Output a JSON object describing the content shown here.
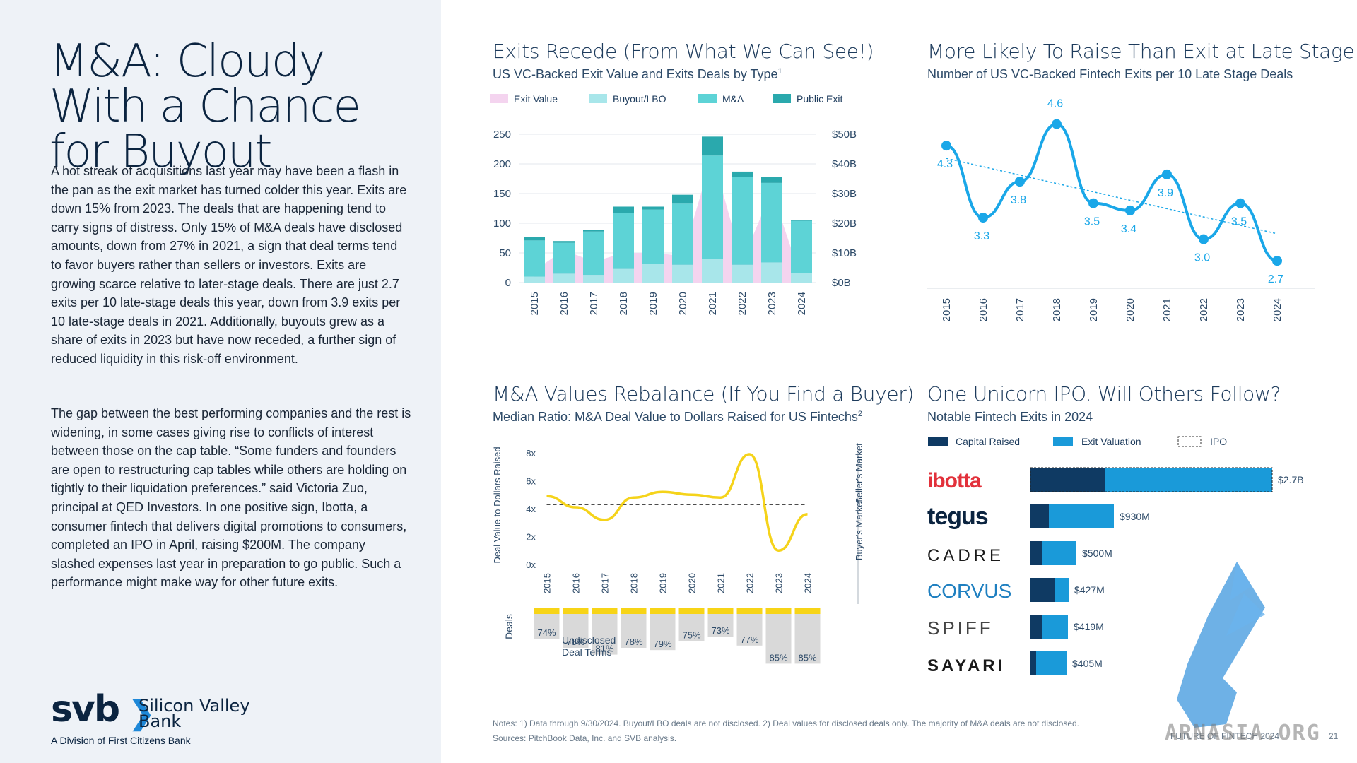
{
  "left": {
    "title": "M&A: Cloudy With a Chance for Buyout",
    "p1": "A hot streak of acquisitions last year may have been a flash in the pan as the exit market has turned colder this year. Exits are down 15% from 2023. The deals that are happening tend to carry signs of distress. Only 15% of M&A deals have disclosed amounts, down from 27% in 2021, a sign that deal terms tend to favor buyers rather than sellers or investors. Exits are growing scarce relative to later-stage deals. There are just 2.7 exits per 10 late-stage deals this year, down from 3.9 exits per 10 late-stage deals in 2021. Additionally, buyouts grew as a share of exits in 2023 but have now receded, a further sign of reduced liquidity in this risk-off environment.",
    "p2": "The gap between the best performing companies and the rest is widening, in some cases giving rise to conflicts of interest between those on the cap table. “Some funders and founders are open to restructuring cap tables while others are holding on tightly to their liquidation preferences.” said Victoria Zuo, principal at QED Investors.  In one positive sign, Ibotta, a consumer fintech that delivers digital promotions to consumers, completed an IPO in April, raising $200M. The company slashed expenses last year in preparation to go public. Such a performance might make way for other future exits.",
    "logo_mark": "svb",
    "logo_chevron": "❯",
    "logo_name": "Silicon Valley Bank",
    "logo_sub": "A Division of First Citizens Bank"
  },
  "colors": {
    "exit_value": "#f4d4ef",
    "buyout": "#a8e6ea",
    "ma": "#5dd3d6",
    "public": "#2aa9ad",
    "line_blue": "#1aa7e8",
    "yellow": "#f7d417",
    "navy": "#0f3a63",
    "bar_blue": "#1a9ad9"
  },
  "chart_data": [
    {
      "type": "bar",
      "title": "Exits Recede (From What We Can See!)",
      "subtitle": "US VC-Backed Exit Value and Exits Deals by Type",
      "subtitle_sup": "1",
      "categories": [
        "2015",
        "2016",
        "2017",
        "2018",
        "2019",
        "2020",
        "2021",
        "2022",
        "2023",
        "2024"
      ],
      "stacked": true,
      "series": [
        {
          "name": "Buyout/LBO",
          "color_key": "buyout",
          "values": [
            10,
            15,
            13,
            23,
            31,
            30,
            40,
            30,
            34,
            16
          ]
        },
        {
          "name": "M&A",
          "color_key": "ma",
          "values": [
            61,
            52,
            73,
            94,
            92,
            103,
            174,
            148,
            134,
            88
          ]
        },
        {
          "name": "Public Exit",
          "color_key": "public",
          "values": [
            6,
            3,
            3,
            11,
            5,
            15,
            32,
            9,
            10,
            1
          ]
        }
      ],
      "area_series": {
        "name": "Exit Value",
        "color_key": "exit_value",
        "values": [
          4,
          11,
          7,
          10,
          10,
          9,
          43,
          7,
          31,
          1
        ]
      },
      "ylim_left": [
        0,
        250
      ],
      "left_ticks": [
        "0",
        "50",
        "100",
        "150",
        "200",
        "250"
      ],
      "ylim_right": [
        0,
        50
      ],
      "right_ticks": [
        "$0B",
        "$10B",
        "$20B",
        "$30B",
        "$40B",
        "$50B"
      ],
      "legend": [
        "Exit Value",
        "Buyout/LBO",
        "M&A",
        "Public Exit"
      ]
    },
    {
      "type": "line",
      "title": "More Likely To Raise Than Exit at Late Stage",
      "subtitle": "Number of US VC-Backed Fintech Exits per 10 Late Stage Deals",
      "categories": [
        "2015",
        "2016",
        "2017",
        "2018",
        "2019",
        "2020",
        "2021",
        "2022",
        "2023",
        "2024"
      ],
      "values": [
        4.3,
        3.3,
        3.8,
        4.6,
        3.5,
        3.4,
        3.9,
        3.0,
        3.5,
        2.7
      ],
      "labels": [
        "4.3",
        "3.3",
        "3.8",
        "4.6",
        "3.5",
        "3.4",
        "3.9",
        "3.0",
        "3.5",
        "2.7"
      ],
      "trendline": true
    },
    {
      "type": "line",
      "title": "M&A Values Rebalance (If You Find a Buyer)",
      "subtitle": "Median Ratio: M&A Deal Value to Dollars Raised for US Fintechs",
      "subtitle_sup": "2",
      "categories": [
        "2015",
        "2016",
        "2017",
        "2018",
        "2019",
        "2020",
        "2021",
        "2022",
        "2023",
        "2024"
      ],
      "values": [
        4.9,
        4.1,
        3.2,
        4.8,
        5.2,
        5.0,
        4.8,
        7.9,
        1.0,
        3.6
      ],
      "average": 4.3,
      "ylim": [
        0,
        8
      ],
      "y_ticks": [
        "0x",
        "2x",
        "4x",
        "6x",
        "8x"
      ],
      "ylabel": "Deal Value to Dollars Raised",
      "right_top": "Seller's Market",
      "right_bottom": "Buyer's Market",
      "deals_label": "Deals",
      "deals_note": "Undisclosed Deal Terms",
      "undisclosed_pct": [
        "74%",
        "78%",
        "81%",
        "78%",
        "79%",
        "75%",
        "73%",
        "77%",
        "85%",
        "85%"
      ],
      "undisclosed_vals": [
        74,
        78,
        81,
        78,
        79,
        75,
        73,
        77,
        85,
        85
      ]
    },
    {
      "type": "bar",
      "orientation": "horizontal",
      "title": "One Unicorn IPO. Will Others Follow?",
      "subtitle": "Notable Fintech Exits in 2024",
      "legend": [
        "Capital Raised",
        "Exit Valuation",
        "IPO"
      ],
      "categories": [
        "ibotta",
        "tegus",
        "CADRE",
        "CORVUS",
        "SPIFF",
        "SAYARI"
      ],
      "capital_raised": [
        0.6,
        0.15,
        0.08,
        0.18,
        0.08,
        0.04
      ],
      "exit_valuation": [
        2.7,
        0.93,
        0.5,
        0.427,
        0.419,
        0.405
      ],
      "value_labels": [
        "$2.7B",
        "$930M",
        "$500M",
        "$427M",
        "$419M",
        "$405M"
      ],
      "ipo": [
        true,
        false,
        false,
        false,
        false,
        false
      ]
    }
  ],
  "notes": {
    "line1": "Notes: 1) Data through 9/30/2024. Buyout/LBO deals are not disclosed. 2) Deal values for disclosed deals only. The majority of M&A deals are not disclosed.",
    "line2": "Sources: PitchBook Data, Inc. and SVB analysis.",
    "footer": "FUTURE OF FINTECH 2024",
    "page": "21",
    "watermark": "ARNASIA.ORG"
  }
}
